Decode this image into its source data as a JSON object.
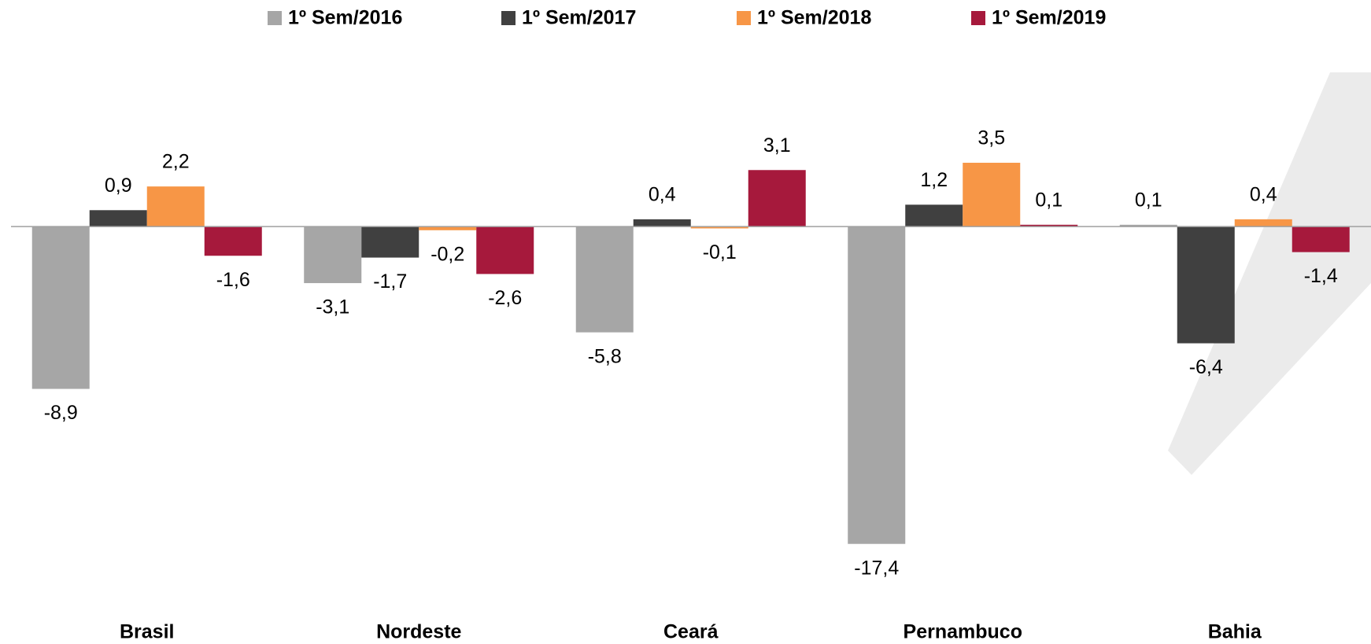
{
  "chart_data": {
    "type": "bar",
    "categories": [
      "Brasil",
      "Nordeste",
      "Ceará",
      "Pernambuco",
      "Bahia"
    ],
    "series": [
      {
        "name": "1º Sem/2016",
        "color": "#a6a6a6",
        "values": [
          -8.9,
          -3.1,
          -5.8,
          -17.4,
          0.1
        ],
        "value_labels": [
          "-8,9",
          "-3,1",
          "-5,8",
          "-17,4",
          "0,1"
        ]
      },
      {
        "name": "1º Sem/2017",
        "color": "#404040",
        "values": [
          0.9,
          -1.7,
          0.4,
          1.2,
          -6.4
        ],
        "value_labels": [
          "0,9",
          "-1,7",
          "0,4",
          "1,2",
          "-6,4"
        ]
      },
      {
        "name": "1º Sem/2018",
        "color": "#f79646",
        "values": [
          2.2,
          -0.2,
          -0.1,
          3.5,
          0.4
        ],
        "value_labels": [
          "2,2",
          "-0,2",
          "-0,1",
          "3,5",
          "0,4"
        ]
      },
      {
        "name": "1º Sem/2019",
        "color": "#a6193c",
        "values": [
          -1.6,
          -2.6,
          3.1,
          0.1,
          -1.4
        ],
        "value_labels": [
          "-1,6",
          "-2,6",
          "3,1",
          "0,1",
          "-1,4"
        ]
      }
    ],
    "ylim": [
      -20,
      6
    ],
    "legend": "top"
  }
}
